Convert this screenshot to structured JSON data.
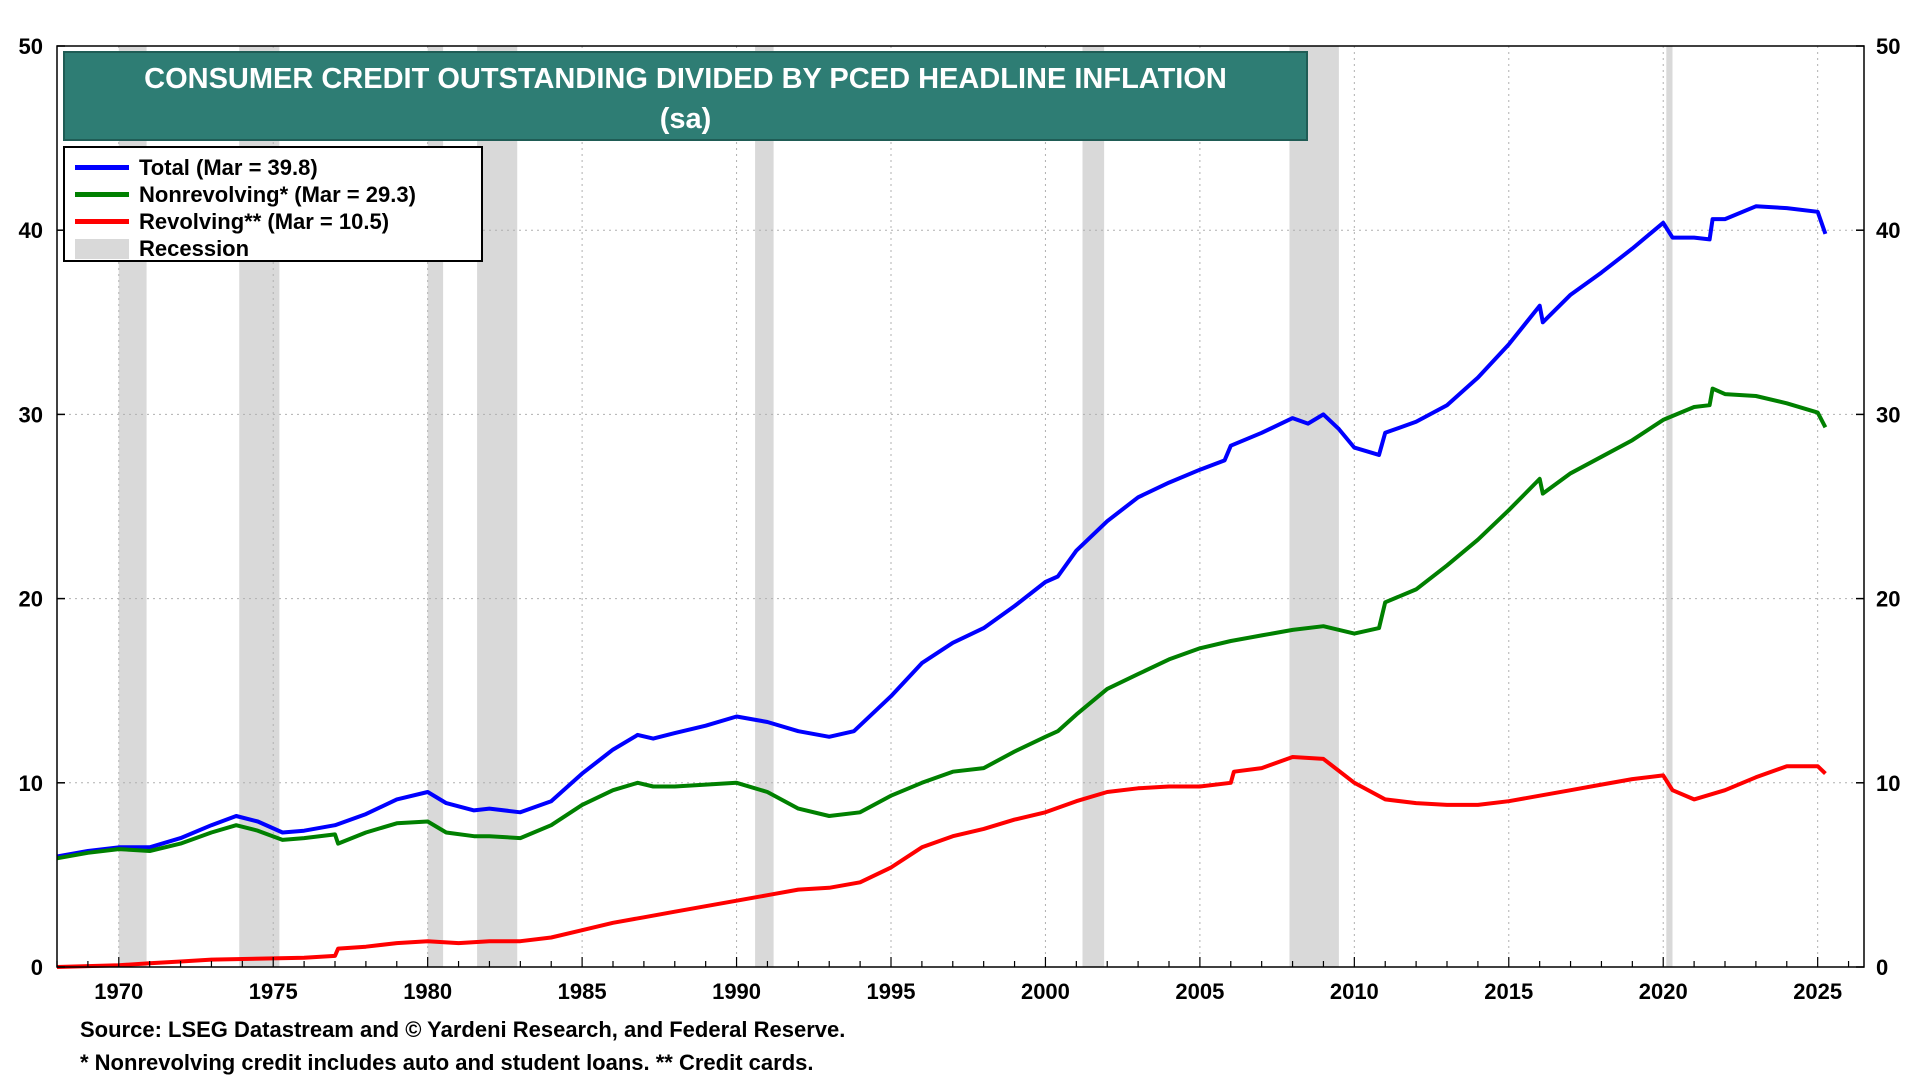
{
  "chart_data": {
    "type": "line",
    "title": "CONSUMER CREDIT OUTSTANDING DIVIDED BY PCED HEADLINE INFLATION",
    "subtitle": "(sa)",
    "xlim": [
      1968,
      2026.5
    ],
    "ylim": [
      0,
      50
    ],
    "y_ticks": [
      0,
      10,
      20,
      30,
      40,
      50
    ],
    "x_ticks": [
      1970,
      1975,
      1980,
      1985,
      1990,
      1995,
      2000,
      2005,
      2010,
      2015,
      2020,
      2025
    ],
    "y_axis_sides": "left and right",
    "grid": "dotted horizontal and vertical",
    "legend_position": "top-left",
    "recessions": [
      [
        1970.0,
        1970.9
      ],
      [
        1973.9,
        1975.2
      ],
      [
        1980.0,
        1980.5
      ],
      [
        1981.6,
        1982.9
      ],
      [
        1990.6,
        1991.2
      ],
      [
        2001.2,
        2001.9
      ],
      [
        2007.9,
        2009.5
      ],
      [
        2020.1,
        2020.3
      ]
    ],
    "series": [
      {
        "name": "Total",
        "legend_label": "Total  (Mar = 39.8)",
        "color": "#0000ff",
        "points": [
          [
            1968.0,
            6.0
          ],
          [
            1969.0,
            6.3
          ],
          [
            1970.0,
            6.5
          ],
          [
            1971.0,
            6.5
          ],
          [
            1972.0,
            7.0
          ],
          [
            1973.0,
            7.7
          ],
          [
            1973.8,
            8.2
          ],
          [
            1974.5,
            7.9
          ],
          [
            1975.3,
            7.3
          ],
          [
            1976.0,
            7.4
          ],
          [
            1977.0,
            7.7
          ],
          [
            1978.0,
            8.3
          ],
          [
            1979.0,
            9.1
          ],
          [
            1980.0,
            9.5
          ],
          [
            1980.6,
            8.9
          ],
          [
            1981.5,
            8.5
          ],
          [
            1982.0,
            8.6
          ],
          [
            1983.0,
            8.4
          ],
          [
            1984.0,
            9.0
          ],
          [
            1985.0,
            10.5
          ],
          [
            1986.0,
            11.8
          ],
          [
            1986.8,
            12.6
          ],
          [
            1987.3,
            12.4
          ],
          [
            1988.0,
            12.7
          ],
          [
            1989.0,
            13.1
          ],
          [
            1990.0,
            13.6
          ],
          [
            1991.0,
            13.3
          ],
          [
            1992.0,
            12.8
          ],
          [
            1993.0,
            12.5
          ],
          [
            1993.8,
            12.8
          ],
          [
            1995.0,
            14.7
          ],
          [
            1996.0,
            16.5
          ],
          [
            1997.0,
            17.6
          ],
          [
            1998.0,
            18.4
          ],
          [
            1999.0,
            19.6
          ],
          [
            2000.0,
            20.9
          ],
          [
            2000.4,
            21.2
          ],
          [
            2001.0,
            22.6
          ],
          [
            2002.0,
            24.2
          ],
          [
            2003.0,
            25.5
          ],
          [
            2004.0,
            26.3
          ],
          [
            2005.0,
            27.0
          ],
          [
            2005.8,
            27.5
          ],
          [
            2006.0,
            28.3
          ],
          [
            2007.0,
            29.0
          ],
          [
            2008.0,
            29.8
          ],
          [
            2008.5,
            29.5
          ],
          [
            2009.0,
            30.0
          ],
          [
            2009.5,
            29.2
          ],
          [
            2010.0,
            28.2
          ],
          [
            2010.8,
            27.8
          ],
          [
            2011.0,
            29.0
          ],
          [
            2012.0,
            29.6
          ],
          [
            2013.0,
            30.5
          ],
          [
            2014.0,
            32.0
          ],
          [
            2015.0,
            33.8
          ],
          [
            2016.0,
            35.9
          ],
          [
            2016.1,
            35.0
          ],
          [
            2017.0,
            36.5
          ],
          [
            2018.0,
            37.7
          ],
          [
            2019.0,
            39.0
          ],
          [
            2020.0,
            40.4
          ],
          [
            2020.3,
            39.6
          ],
          [
            2021.0,
            39.6
          ],
          [
            2021.5,
            39.5
          ],
          [
            2021.6,
            40.6
          ],
          [
            2022.0,
            40.6
          ],
          [
            2023.0,
            41.3
          ],
          [
            2024.0,
            41.2
          ],
          [
            2025.0,
            41.0
          ],
          [
            2025.25,
            39.8
          ]
        ]
      },
      {
        "name": "Nonrevolving*",
        "legend_label": "Nonrevolving* (Mar = 29.3)",
        "color": "#008000",
        "points": [
          [
            1968.0,
            5.9
          ],
          [
            1969.0,
            6.2
          ],
          [
            1970.0,
            6.4
          ],
          [
            1971.0,
            6.3
          ],
          [
            1972.0,
            6.7
          ],
          [
            1973.0,
            7.3
          ],
          [
            1973.8,
            7.7
          ],
          [
            1974.5,
            7.4
          ],
          [
            1975.3,
            6.9
          ],
          [
            1976.0,
            7.0
          ],
          [
            1977.0,
            7.2
          ],
          [
            1977.1,
            6.7
          ],
          [
            1978.0,
            7.3
          ],
          [
            1979.0,
            7.8
          ],
          [
            1980.0,
            7.9
          ],
          [
            1980.6,
            7.3
          ],
          [
            1981.5,
            7.1
          ],
          [
            1982.0,
            7.1
          ],
          [
            1983.0,
            7.0
          ],
          [
            1984.0,
            7.7
          ],
          [
            1985.0,
            8.8
          ],
          [
            1986.0,
            9.6
          ],
          [
            1986.8,
            10.0
          ],
          [
            1987.3,
            9.8
          ],
          [
            1988.0,
            9.8
          ],
          [
            1989.0,
            9.9
          ],
          [
            1990.0,
            10.0
          ],
          [
            1991.0,
            9.5
          ],
          [
            1992.0,
            8.6
          ],
          [
            1993.0,
            8.2
          ],
          [
            1994.0,
            8.4
          ],
          [
            1995.0,
            9.3
          ],
          [
            1996.0,
            10.0
          ],
          [
            1997.0,
            10.6
          ],
          [
            1998.0,
            10.8
          ],
          [
            1999.0,
            11.7
          ],
          [
            2000.0,
            12.5
          ],
          [
            2000.4,
            12.8
          ],
          [
            2001.0,
            13.7
          ],
          [
            2002.0,
            15.1
          ],
          [
            2003.0,
            15.9
          ],
          [
            2004.0,
            16.7
          ],
          [
            2005.0,
            17.3
          ],
          [
            2006.0,
            17.7
          ],
          [
            2007.0,
            18.0
          ],
          [
            2008.0,
            18.3
          ],
          [
            2009.0,
            18.5
          ],
          [
            2010.0,
            18.1
          ],
          [
            2010.8,
            18.4
          ],
          [
            2011.0,
            19.8
          ],
          [
            2012.0,
            20.5
          ],
          [
            2013.0,
            21.8
          ],
          [
            2014.0,
            23.2
          ],
          [
            2015.0,
            24.8
          ],
          [
            2016.0,
            26.5
          ],
          [
            2016.1,
            25.7
          ],
          [
            2017.0,
            26.8
          ],
          [
            2018.0,
            27.7
          ],
          [
            2019.0,
            28.6
          ],
          [
            2020.0,
            29.7
          ],
          [
            2021.0,
            30.4
          ],
          [
            2021.5,
            30.5
          ],
          [
            2021.6,
            31.4
          ],
          [
            2022.0,
            31.1
          ],
          [
            2023.0,
            31.0
          ],
          [
            2024.0,
            30.6
          ],
          [
            2025.0,
            30.1
          ],
          [
            2025.25,
            29.3
          ]
        ]
      },
      {
        "name": "Revolving**",
        "legend_label": "Revolving** (Mar = 10.5)",
        "color": "#ff0000",
        "points": [
          [
            1968.0,
            0.0
          ],
          [
            1970.0,
            0.1
          ],
          [
            1971.0,
            0.2
          ],
          [
            1972.0,
            0.3
          ],
          [
            1973.0,
            0.4
          ],
          [
            1976.0,
            0.5
          ],
          [
            1977.0,
            0.6
          ],
          [
            1977.1,
            1.0
          ],
          [
            1978.0,
            1.1
          ],
          [
            1979.0,
            1.3
          ],
          [
            1980.0,
            1.4
          ],
          [
            1981.0,
            1.3
          ],
          [
            1982.0,
            1.4
          ],
          [
            1983.0,
            1.4
          ],
          [
            1984.0,
            1.6
          ],
          [
            1985.0,
            2.0
          ],
          [
            1986.0,
            2.4
          ],
          [
            1987.0,
            2.7
          ],
          [
            1988.0,
            3.0
          ],
          [
            1989.0,
            3.3
          ],
          [
            1990.0,
            3.6
          ],
          [
            1991.0,
            3.9
          ],
          [
            1992.0,
            4.2
          ],
          [
            1993.0,
            4.3
          ],
          [
            1994.0,
            4.6
          ],
          [
            1995.0,
            5.4
          ],
          [
            1996.0,
            6.5
          ],
          [
            1997.0,
            7.1
          ],
          [
            1998.0,
            7.5
          ],
          [
            1999.0,
            8.0
          ],
          [
            2000.0,
            8.4
          ],
          [
            2001.0,
            9.0
          ],
          [
            2002.0,
            9.5
          ],
          [
            2003.0,
            9.7
          ],
          [
            2004.0,
            9.8
          ],
          [
            2005.0,
            9.8
          ],
          [
            2006.0,
            10.0
          ],
          [
            2006.1,
            10.6
          ],
          [
            2007.0,
            10.8
          ],
          [
            2008.0,
            11.4
          ],
          [
            2009.0,
            11.3
          ],
          [
            2010.0,
            10.0
          ],
          [
            2011.0,
            9.1
          ],
          [
            2012.0,
            8.9
          ],
          [
            2013.0,
            8.8
          ],
          [
            2014.0,
            8.8
          ],
          [
            2015.0,
            9.0
          ],
          [
            2016.0,
            9.3
          ],
          [
            2017.0,
            9.6
          ],
          [
            2018.0,
            9.9
          ],
          [
            2019.0,
            10.2
          ],
          [
            2020.0,
            10.4
          ],
          [
            2020.3,
            9.6
          ],
          [
            2021.0,
            9.1
          ],
          [
            2022.0,
            9.6
          ],
          [
            2023.0,
            10.3
          ],
          [
            2024.0,
            10.9
          ],
          [
            2025.0,
            10.9
          ],
          [
            2025.25,
            10.5
          ]
        ]
      }
    ]
  },
  "legend": {
    "total": "Total  (Mar = 39.8)",
    "nonrevolving": "Nonrevolving* (Mar = 29.3)",
    "revolving": "Revolving** (Mar = 10.5)",
    "recession": "Recession"
  },
  "colors": {
    "title_bg": "#2e7d74",
    "recession": "#d9d9d9",
    "total": "#0000ff",
    "nonrevolving": "#008000",
    "revolving": "#ff0000"
  },
  "footnotes": {
    "source": "Source: LSEG Datastream and © Yardeni Research, and Federal Reserve.",
    "note": "* Nonrevolving credit includes auto and student loans. ** Credit cards."
  }
}
